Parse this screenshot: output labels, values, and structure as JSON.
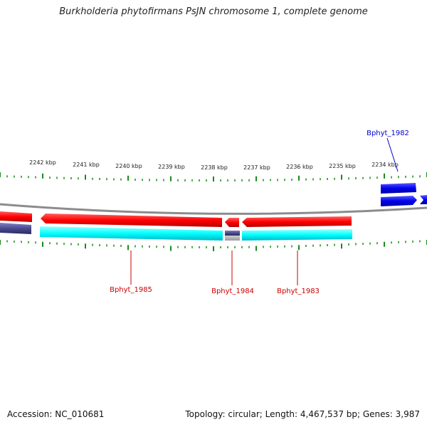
{
  "title": "Burkholderia phytofirmans PsJN chromosome 1, complete genome",
  "scale_labels": [
    "2242 kbp",
    "2241 kbp",
    "2240 kbp",
    "2239 kbp",
    "2238 kbp",
    "2237 kbp",
    "2236 kbp",
    "2235 kbp",
    "2234 kbp"
  ],
  "gene_labels": [
    {
      "name": "Bphyt_1982",
      "color": "#0000cc"
    },
    {
      "name": "Bphyt_1985",
      "color": "#cc0000"
    },
    {
      "name": "Bphyt_1984",
      "color": "#cc0000"
    },
    {
      "name": "Bphyt_1983",
      "color": "#cc0000"
    }
  ],
  "colors": {
    "forward_cds": "#ff0000",
    "reverse_cds": "#00ffff",
    "other_gene_blue": "#0000ee",
    "other_gene_navy": "#4a4a90",
    "ticks": "#1a8a1a",
    "backbone": "#888888"
  },
  "footer": {
    "accession": "Accession: NC_010681",
    "summary": "Topology: circular; Length: 4,467,537 bp; Genes: 3,987"
  }
}
